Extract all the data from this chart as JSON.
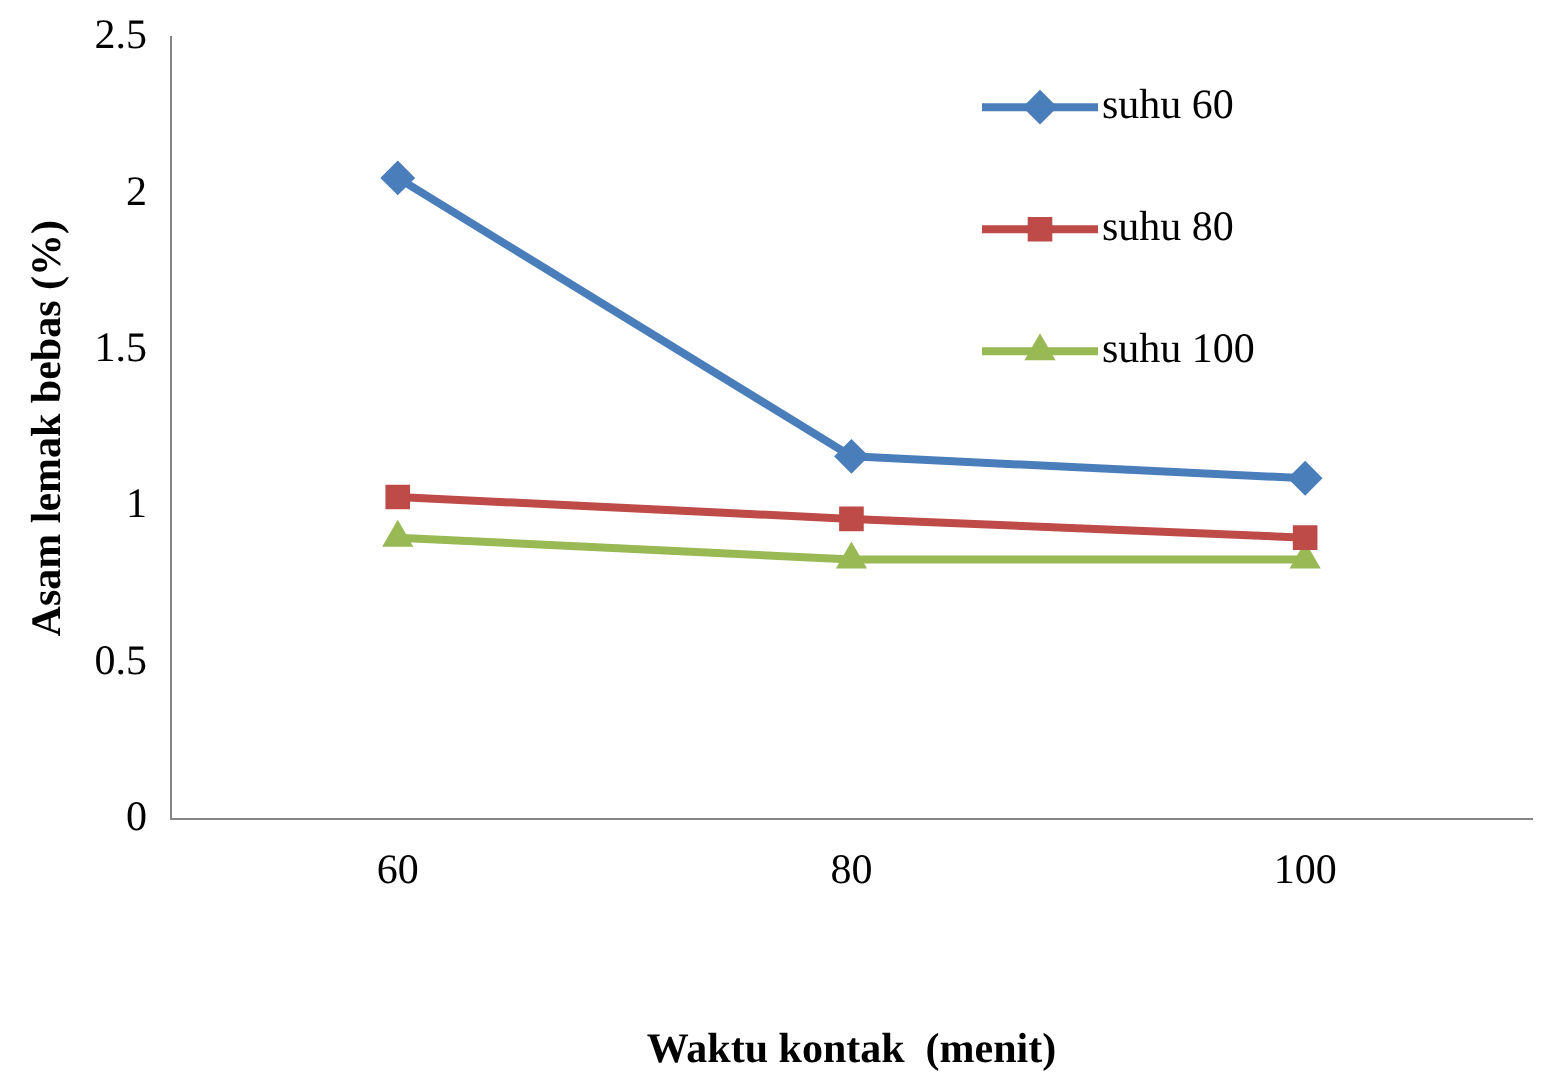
{
  "chart_data": {
    "type": "line",
    "xlabel": "Waktu kontak  (menit)",
    "ylabel": "Asam lemak bebas (%)",
    "categories": [
      "60",
      "80",
      "100"
    ],
    "series": [
      {
        "name": "suhu 60",
        "color": "#4a7ebb",
        "marker": "diamond",
        "values": [
          2.05,
          1.16,
          1.09
        ]
      },
      {
        "name": "suhu 80",
        "color": "#be4b48",
        "marker": "square",
        "values": [
          1.03,
          0.96,
          0.9
        ]
      },
      {
        "name": "suhu 100",
        "color": "#98b954",
        "marker": "triangle",
        "values": [
          0.9,
          0.83,
          0.83
        ]
      }
    ],
    "ylim": [
      0,
      2.5
    ],
    "yticks": [
      0,
      0.5,
      1,
      1.5,
      2,
      2.5
    ],
    "grid": false,
    "legend": "top right"
  }
}
